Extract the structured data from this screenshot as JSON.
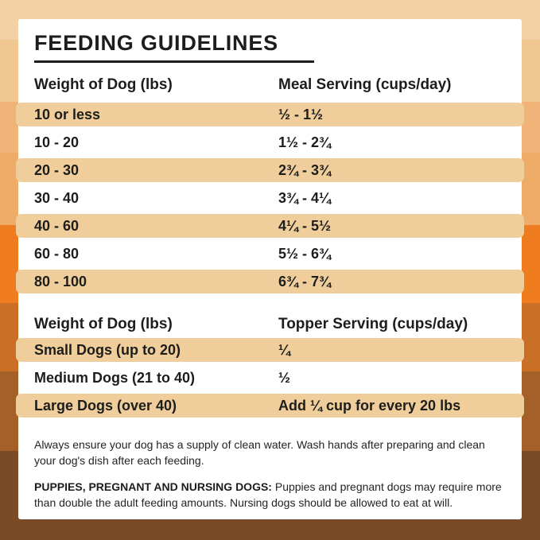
{
  "title": "FEEDING GUIDELINES",
  "colors": {
    "highlight_band": "#F0CE9B",
    "card": "#FFFFFF",
    "text": "#1D1D1B",
    "background_stripes": [
      "#F2D2A4",
      "#F0C791",
      "#F0B478",
      "#EFAB68",
      "#EF7D20",
      "#C96F26",
      "#A56028",
      "#7A4B26"
    ]
  },
  "meal_table": {
    "columns": [
      "Weight of Dog (lbs)",
      "Meal Serving (cups/day)"
    ],
    "rows": [
      {
        "weight": "10 or less",
        "serving": "½ - 1½"
      },
      {
        "weight": "10 - 20",
        "serving": "1½ - 2¾"
      },
      {
        "weight": "20 - 30",
        "serving": "2¾ - 3¾"
      },
      {
        "weight": "30 - 40",
        "serving": "3¾ - 4¼"
      },
      {
        "weight": "40 - 60",
        "serving": "4¼ - 5½"
      },
      {
        "weight": "60 - 80",
        "serving": "5½ - 6¾"
      },
      {
        "weight": "80 - 100",
        "serving": "6¾ - 7¾"
      }
    ]
  },
  "topper_table": {
    "columns": [
      "Weight of Dog (lbs)",
      "Topper Serving (cups/day)"
    ],
    "rows": [
      {
        "weight": "Small Dogs (up to 20)",
        "serving": "¼"
      },
      {
        "weight": "Medium Dogs (21 to 40)",
        "serving": "½"
      },
      {
        "weight": "Large Dogs (over 40)",
        "serving": "Add ¼ cup for every 20 lbs"
      }
    ]
  },
  "notes": {
    "water": "Always ensure your dog has a supply of clean water. Wash hands after preparing and clean your dog's dish after each feeding.",
    "special_label": "PUPPIES, PREGNANT AND NURSING DOGS:",
    "special_text": " Puppies and pregnant dogs may require more than double the adult feeding amounts. Nursing dogs should be allowed to eat at will."
  }
}
